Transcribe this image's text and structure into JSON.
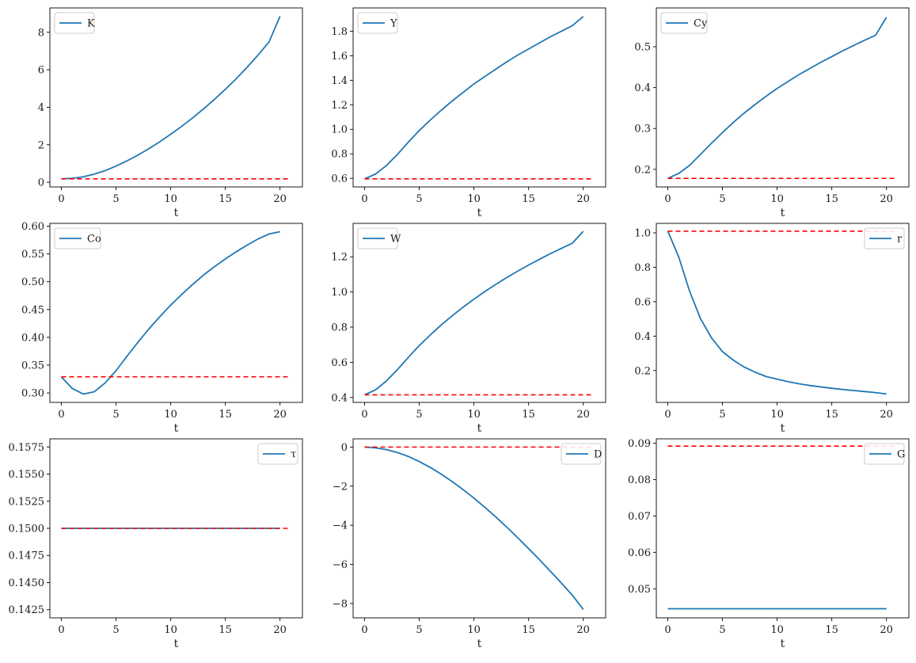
{
  "colors": {
    "series": "#1f77b4",
    "reference": "#ff0000"
  },
  "chart_data": [
    {
      "type": "line",
      "xlabel": "t",
      "xlim": [
        -1.05,
        22.05
      ],
      "ylim": [
        -0.25,
        9.3
      ],
      "xticks": [
        0,
        5,
        10,
        15,
        20
      ],
      "yticks": [
        0,
        2,
        4,
        6,
        8
      ],
      "tick_labels": [
        "0",
        "2",
        "4",
        "6",
        "8"
      ],
      "legend": "upper left",
      "series": [
        {
          "name": "K",
          "x": [
            0,
            1,
            2,
            3,
            4,
            5,
            6,
            7,
            8,
            9,
            10,
            11,
            12,
            13,
            14,
            15,
            16,
            17,
            18,
            19,
            20
          ],
          "y": [
            0.18,
            0.21,
            0.29,
            0.43,
            0.62,
            0.86,
            1.14,
            1.45,
            1.79,
            2.16,
            2.56,
            2.98,
            3.43,
            3.91,
            4.42,
            4.96,
            5.53,
            6.14,
            6.79,
            7.49,
            8.85
          ]
        }
      ],
      "reference": {
        "y": 0.18,
        "x": [
          0,
          21
        ]
      }
    },
    {
      "type": "line",
      "xlabel": "t",
      "xlim": [
        -1.05,
        22.05
      ],
      "ylim": [
        0.53,
        1.99
      ],
      "xticks": [
        0,
        5,
        10,
        15,
        20
      ],
      "yticks": [
        0.6,
        0.8,
        1.0,
        1.2,
        1.4,
        1.6,
        1.8
      ],
      "tick_labels": [
        "0.6",
        "0.8",
        "1.0",
        "1.2",
        "1.4",
        "1.6",
        "1.8"
      ],
      "legend": "upper left",
      "series": [
        {
          "name": "Y",
          "x": [
            0,
            1,
            2,
            3,
            4,
            5,
            6,
            7,
            8,
            9,
            10,
            11,
            12,
            13,
            14,
            15,
            16,
            17,
            18,
            19,
            20
          ],
          "y": [
            0.596,
            0.635,
            0.705,
            0.795,
            0.895,
            0.99,
            1.075,
            1.155,
            1.23,
            1.3,
            1.37,
            1.43,
            1.49,
            1.55,
            1.605,
            1.655,
            1.705,
            1.755,
            1.8,
            1.845,
            1.92
          ]
        }
      ],
      "reference": {
        "y": 0.596,
        "x": [
          0,
          21
        ]
      }
    },
    {
      "type": "line",
      "xlabel": "t",
      "xlim": [
        -1.05,
        22.05
      ],
      "ylim": [
        0.157,
        0.595
      ],
      "xticks": [
        0,
        5,
        10,
        15,
        20
      ],
      "yticks": [
        0.2,
        0.3,
        0.4,
        0.5
      ],
      "tick_labels": [
        "0.2",
        "0.3",
        "0.4",
        "0.5"
      ],
      "legend": "upper left",
      "series": [
        {
          "name": "Cy",
          "x": [
            0,
            1,
            2,
            3,
            4,
            5,
            6,
            7,
            8,
            9,
            10,
            11,
            12,
            13,
            14,
            15,
            16,
            17,
            18,
            19,
            20
          ],
          "y": [
            0.178,
            0.19,
            0.21,
            0.237,
            0.264,
            0.29,
            0.315,
            0.338,
            0.359,
            0.379,
            0.398,
            0.415,
            0.432,
            0.447,
            0.462,
            0.476,
            0.49,
            0.503,
            0.516,
            0.528,
            0.572
          ]
        }
      ],
      "reference": {
        "y": 0.178,
        "x": [
          0,
          21
        ]
      }
    },
    {
      "type": "line",
      "xlabel": "t",
      "xlim": [
        -1.05,
        22.05
      ],
      "ylim": [
        0.283,
        0.605
      ],
      "xticks": [
        0,
        5,
        10,
        15,
        20
      ],
      "yticks": [
        0.3,
        0.35,
        0.4,
        0.45,
        0.5,
        0.55,
        0.6
      ],
      "tick_labels": [
        "0.30",
        "0.35",
        "0.40",
        "0.45",
        "0.50",
        "0.55",
        "0.60"
      ],
      "legend": "upper left",
      "series": [
        {
          "name": "Co",
          "x": [
            0,
            1,
            2,
            3,
            4,
            5,
            6,
            7,
            8,
            9,
            10,
            11,
            12,
            13,
            14,
            15,
            16,
            17,
            18,
            19,
            20
          ],
          "y": [
            0.329,
            0.308,
            0.298,
            0.302,
            0.318,
            0.34,
            0.366,
            0.391,
            0.415,
            0.437,
            0.458,
            0.477,
            0.495,
            0.512,
            0.527,
            0.541,
            0.554,
            0.566,
            0.577,
            0.586,
            0.59
          ]
        }
      ],
      "reference": {
        "y": 0.329,
        "x": [
          0,
          21
        ]
      }
    },
    {
      "type": "line",
      "xlabel": "t",
      "xlim": [
        -1.05,
        22.05
      ],
      "ylim": [
        0.372,
        1.39
      ],
      "xticks": [
        0,
        5,
        10,
        15,
        20
      ],
      "yticks": [
        0.4,
        0.6,
        0.8,
        1.0,
        1.2
      ],
      "tick_labels": [
        "0.4",
        "0.6",
        "0.8",
        "1.0",
        "1.2"
      ],
      "legend": "upper left",
      "series": [
        {
          "name": "W",
          "x": [
            0,
            1,
            2,
            3,
            4,
            5,
            6,
            7,
            8,
            9,
            10,
            11,
            12,
            13,
            14,
            15,
            16,
            17,
            18,
            19,
            20
          ],
          "y": [
            0.415,
            0.443,
            0.494,
            0.558,
            0.628,
            0.695,
            0.755,
            0.812,
            0.864,
            0.913,
            0.959,
            1.002,
            1.043,
            1.082,
            1.118,
            1.153,
            1.186,
            1.218,
            1.248,
            1.277,
            1.345
          ]
        }
      ],
      "reference": {
        "y": 0.415,
        "x": [
          0,
          21
        ]
      }
    },
    {
      "type": "line",
      "xlabel": "t",
      "xlim": [
        -1.05,
        22.05
      ],
      "ylim": [
        0.015,
        1.055
      ],
      "xticks": [
        0,
        5,
        10,
        15,
        20
      ],
      "yticks": [
        0.2,
        0.4,
        0.6,
        0.8,
        1.0
      ],
      "tick_labels": [
        "0.2",
        "0.4",
        "0.6",
        "0.8",
        "1.0"
      ],
      "legend": "upper right",
      "series": [
        {
          "name": "r",
          "x": [
            0,
            1,
            2,
            3,
            4,
            5,
            6,
            7,
            8,
            9,
            10,
            11,
            12,
            13,
            14,
            15,
            16,
            17,
            18,
            19,
            20
          ],
          "y": [
            1.01,
            0.86,
            0.66,
            0.5,
            0.39,
            0.31,
            0.26,
            0.22,
            0.19,
            0.165,
            0.15,
            0.135,
            0.123,
            0.113,
            0.105,
            0.097,
            0.09,
            0.084,
            0.078,
            0.072,
            0.064
          ]
        }
      ],
      "reference": {
        "y": 1.01,
        "x": [
          0,
          21
        ]
      }
    },
    {
      "type": "line",
      "xlabel": "t",
      "xlim": [
        -1.05,
        22.05
      ],
      "ylim": [
        0.14175,
        0.15825
      ],
      "xticks": [
        0,
        5,
        10,
        15,
        20
      ],
      "yticks": [
        0.1425,
        0.145,
        0.1475,
        0.15,
        0.1525,
        0.155,
        0.1575
      ],
      "tick_labels": [
        "0.1425",
        "0.1450",
        "0.1475",
        "0.1500",
        "0.1525",
        "0.1550",
        "0.1575"
      ],
      "legend": "upper right",
      "series": [
        {
          "name": "τ",
          "x": [
            0,
            20
          ],
          "y": [
            0.15,
            0.15
          ]
        }
      ],
      "reference": {
        "y": 0.15,
        "x": [
          0,
          21
        ]
      }
    },
    {
      "type": "line",
      "xlabel": "t",
      "xlim": [
        -1.05,
        22.05
      ],
      "ylim": [
        -8.73,
        0.42
      ],
      "xticks": [
        0,
        5,
        10,
        15,
        20
      ],
      "yticks": [
        -8,
        -6,
        -4,
        -2,
        0
      ],
      "tick_labels": [
        "−8",
        "−6",
        "−4",
        "−2",
        "0"
      ],
      "legend": "upper right",
      "series": [
        {
          "name": "D",
          "x": [
            0,
            1,
            2,
            3,
            4,
            5,
            6,
            7,
            8,
            9,
            10,
            11,
            12,
            13,
            14,
            15,
            16,
            17,
            18,
            19,
            20
          ],
          "y": [
            0,
            -0.04,
            -0.13,
            -0.28,
            -0.48,
            -0.74,
            -1.04,
            -1.38,
            -1.76,
            -2.17,
            -2.61,
            -3.08,
            -3.57,
            -4.09,
            -4.63,
            -5.19,
            -5.76,
            -6.35,
            -6.95,
            -7.57,
            -8.3
          ]
        }
      ],
      "reference": {
        "y": 0,
        "x": [
          0,
          21
        ]
      }
    },
    {
      "type": "line",
      "xlabel": "t",
      "xlim": [
        -1.05,
        22.05
      ],
      "ylim": [
        0.042,
        0.0912
      ],
      "xticks": [
        0,
        5,
        10,
        15,
        20
      ],
      "yticks": [
        0.05,
        0.06,
        0.07,
        0.08,
        0.09
      ],
      "tick_labels": [
        "0.05",
        "0.06",
        "0.07",
        "0.08",
        "0.09"
      ],
      "legend": "upper right",
      "series": [
        {
          "name": "G",
          "x": [
            0,
            20
          ],
          "y": [
            0.0445,
            0.0445
          ]
        }
      ],
      "reference": {
        "y": 0.0892,
        "x": [
          0,
          21
        ]
      }
    }
  ]
}
